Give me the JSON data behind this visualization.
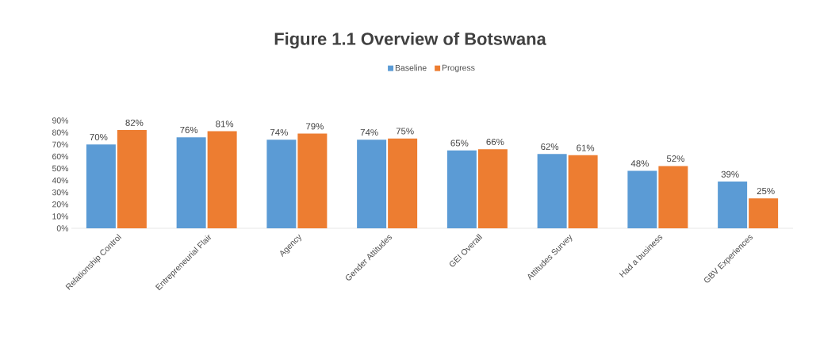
{
  "chart_data": {
    "type": "bar",
    "title": "Figure 1.1 Overview of Botswana",
    "categories": [
      "Relationship Control",
      "Entrepreneurial Flair",
      "Agency",
      "Gender Attitudes",
      "GEI Overall",
      "Attitudes Survey",
      "Had a business",
      "GBV Experiences"
    ],
    "series": [
      {
        "name": "Baseline",
        "color": "#5b9bd5",
        "values": [
          70,
          76,
          74,
          74,
          65,
          62,
          48,
          39
        ],
        "value_labels": [
          "70%",
          "76%",
          "74%",
          "74%",
          "65%",
          "62%",
          "48%",
          "39%"
        ]
      },
      {
        "name": "Progress",
        "color": "#ed7d31",
        "values": [
          82,
          81,
          79,
          75,
          66,
          61,
          52,
          25
        ],
        "value_labels": [
          "82%",
          "81%",
          "79%",
          "75%",
          "66%",
          "61%",
          "52%",
          "25%"
        ]
      }
    ],
    "ylim": [
      0,
      90
    ],
    "yticks": [
      {
        "value": 0,
        "label": "0%"
      },
      {
        "value": 10,
        "label": "10%"
      },
      {
        "value": 20,
        "label": "20%"
      },
      {
        "value": 30,
        "label": "30%"
      },
      {
        "value": 40,
        "label": "40%"
      },
      {
        "value": 50,
        "label": "50%"
      },
      {
        "value": 60,
        "label": "60%"
      },
      {
        "value": 70,
        "label": "70%"
      },
      {
        "value": 80,
        "label": "80%"
      },
      {
        "value": 90,
        "label": "90%"
      }
    ],
    "grid": false,
    "legend": "top"
  }
}
